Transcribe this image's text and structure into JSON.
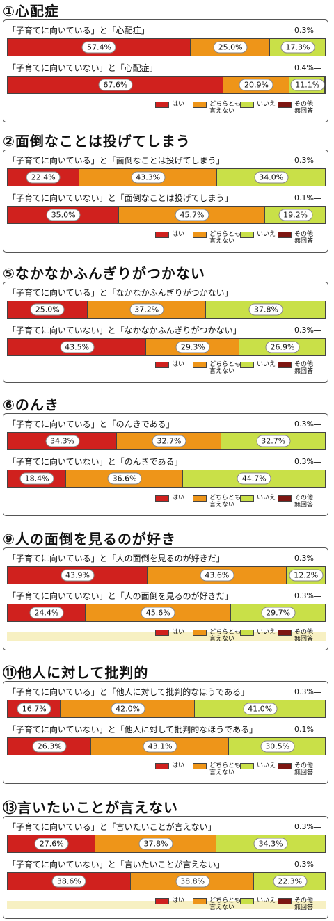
{
  "colors": {
    "yes": "#d0211e",
    "neither": "#ee9519",
    "no": "#c9e048",
    "other": "#7d1612"
  },
  "legend": {
    "yes": "はい",
    "neither": "どちらとも\n言えない",
    "no": "いいえ",
    "other": "その他\n無回答"
  },
  "chart_data": [
    {
      "type": "bar",
      "title": "①心配症",
      "series_names": [
        "はい",
        "どちらとも言えない",
        "いいえ",
        "その他無回答"
      ],
      "rows": [
        {
          "label": "「子育てに向いている」と「心配症」",
          "values": [
            57.4,
            25.0,
            17.3,
            0.3
          ],
          "labels": [
            "57.4%",
            "25.0%",
            "17.3%",
            "0.3%"
          ]
        },
        {
          "label": "「子育てに向いていない」と「心配症」",
          "values": [
            67.6,
            20.9,
            11.1,
            0.4
          ],
          "labels": [
            "67.6%",
            "20.9%",
            "11.1%",
            "0.4%"
          ]
        }
      ]
    },
    {
      "type": "bar",
      "title": "②面倒なことは投げてしまう",
      "series_names": [
        "はい",
        "どちらとも言えない",
        "いいえ",
        "その他無回答"
      ],
      "rows": [
        {
          "label": "「子育てに向いている」と「面倒なことは投げてしまう」",
          "values": [
            22.4,
            43.3,
            34.0,
            0.3
          ],
          "labels": [
            "22.4%",
            "43.3%",
            "34.0%",
            "0.3%"
          ]
        },
        {
          "label": "「子育てに向いていない」と「面倒なことは投げてしまう」",
          "values": [
            35.0,
            45.7,
            19.2,
            0.1
          ],
          "labels": [
            "35.0%",
            "45.7%",
            "19.2%",
            "0.1%"
          ]
        }
      ]
    },
    {
      "type": "bar",
      "title": "⑤なかなかふんぎりがつかない",
      "series_names": [
        "はい",
        "どちらとも言えない",
        "いいえ",
        "その他無回答"
      ],
      "rows": [
        {
          "label": "「子育てに向いている」と「なかなかふんぎりがつかない」",
          "values": [
            25.0,
            37.2,
            37.8,
            0
          ],
          "labels": [
            "25.0%",
            "37.2%",
            "37.8%",
            ""
          ]
        },
        {
          "label": "「子育てに向いていない」と「なかなかふんぎりがつかない」",
          "values": [
            43.5,
            29.3,
            26.9,
            0.3
          ],
          "labels": [
            "43.5%",
            "29.3%",
            "26.9%",
            "0.3%"
          ]
        }
      ]
    },
    {
      "type": "bar",
      "title": "⑥のんき",
      "series_names": [
        "はい",
        "どちらとも言えない",
        "いいえ",
        "その他無回答"
      ],
      "rows": [
        {
          "label": "「子育てに向いている」と「のんきである」",
          "values": [
            34.3,
            32.7,
            32.7,
            0.3
          ],
          "labels": [
            "34.3%",
            "32.7%",
            "32.7%",
            "0.3%"
          ]
        },
        {
          "label": "「子育てに向いていない」と「のんきである」",
          "values": [
            18.4,
            36.6,
            44.7,
            0.3
          ],
          "labels": [
            "18.4%",
            "36.6%",
            "44.7%",
            "0.3%"
          ]
        }
      ]
    },
    {
      "type": "bar",
      "title": "⑨人の面倒を見るのが好き",
      "series_names": [
        "はい",
        "どちらとも言えない",
        "いいえ",
        "その他無回答"
      ],
      "rows": [
        {
          "label": "「子育てに向いている」と「人の面倒を見るのが好きだ」",
          "values": [
            43.9,
            43.6,
            12.2,
            0.3
          ],
          "labels": [
            "43.9%",
            "43.6%",
            "12.2%",
            "0.3%"
          ]
        },
        {
          "label": "「子育てに向いていない」と「人の面倒を見るのが好きだ」",
          "values": [
            24.4,
            45.6,
            29.7,
            0.3
          ],
          "labels": [
            "24.4%",
            "45.6%",
            "29.7%",
            "0.3%"
          ]
        }
      ]
    },
    {
      "type": "bar",
      "title": "⑪他人に対して批判的",
      "series_names": [
        "はい",
        "どちらとも言えない",
        "いいえ",
        "その他無回答"
      ],
      "rows": [
        {
          "label": "「子育てに向いている」と「他人に対して批判的なほうである」",
          "values": [
            16.7,
            42.0,
            41.0,
            0.3
          ],
          "labels": [
            "16.7%",
            "42.0%",
            "41.0%",
            "0.3%"
          ]
        },
        {
          "label": "「子育てに向いていない」と「他人に対して批判的なほうである」",
          "values": [
            26.3,
            43.1,
            30.5,
            0.1
          ],
          "labels": [
            "26.3%",
            "43.1%",
            "30.5%",
            "0.1%"
          ]
        }
      ]
    },
    {
      "type": "bar",
      "title": "⑬言いたいことが言えない",
      "series_names": [
        "はい",
        "どちらとも言えない",
        "いいえ",
        "その他無回答"
      ],
      "rows": [
        {
          "label": "「子育てに向いている」と「言いたいことが言えない」",
          "values": [
            27.6,
            37.8,
            34.3,
            0.3
          ],
          "labels": [
            "27.6%",
            "37.8%",
            "34.3%",
            "0.3%"
          ]
        },
        {
          "label": "「子育てに向いていない」と「言いたいことが言えない」",
          "values": [
            38.6,
            38.8,
            22.3,
            0.3
          ],
          "labels": [
            "38.6%",
            "38.8%",
            "22.3%",
            "0.3%"
          ]
        }
      ]
    }
  ]
}
